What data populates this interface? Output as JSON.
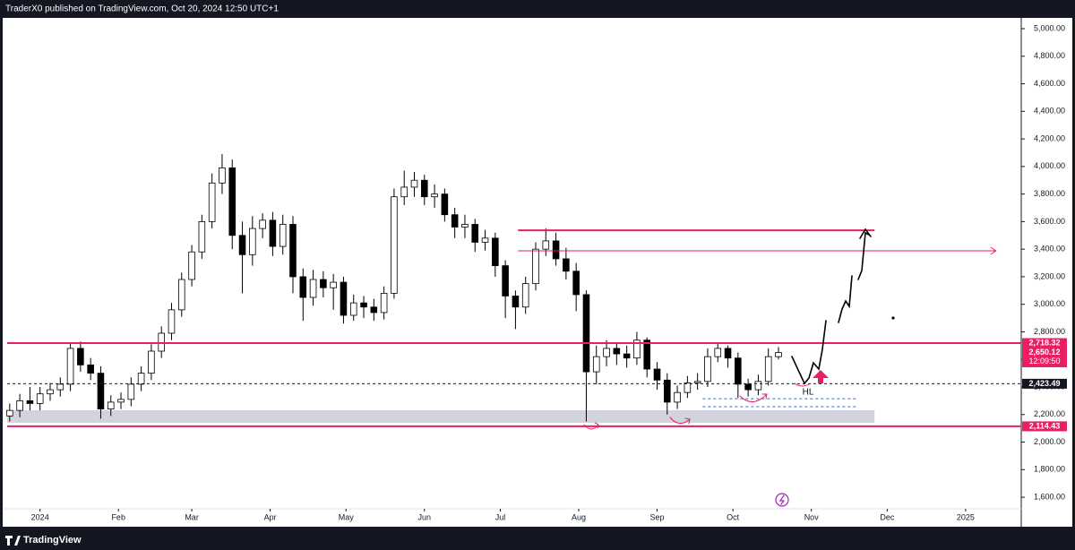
{
  "header": {
    "text": "TraderX0 published on TradingView.com, Oct 20, 2024 12:50 UTC+1"
  },
  "footer": {
    "brand": "TradingView"
  },
  "chart_data": {
    "type": "candlestick",
    "x": [
      -12,
      -8,
      -4,
      0,
      4,
      8,
      12,
      16,
      20,
      24,
      28,
      32,
      36,
      40,
      44,
      48,
      52,
      56,
      60,
      64,
      68,
      72,
      76,
      80,
      84,
      88,
      92,
      96,
      100,
      104,
      108,
      112,
      116,
      120,
      124,
      128,
      132,
      136,
      140,
      144,
      148,
      152,
      156,
      160,
      164,
      168,
      172,
      176,
      180,
      184,
      188,
      192,
      196,
      200,
      204,
      208,
      212,
      216,
      220,
      224,
      228,
      232,
      236,
      240,
      244,
      248,
      252,
      256,
      260,
      264,
      268,
      272,
      276,
      280,
      284,
      288,
      292
    ],
    "open": [
      2190,
      2230,
      2300,
      2280,
      2350,
      2380,
      2420,
      2680,
      2560,
      2500,
      2240,
      2290,
      2310,
      2420,
      2500,
      2660,
      2790,
      2960,
      3180,
      3380,
      3600,
      3880,
      3990,
      3500,
      3360,
      3550,
      3610,
      3420,
      3580,
      3200,
      3050,
      3180,
      3120,
      3160,
      2920,
      3010,
      2980,
      2940,
      3080,
      3780,
      3850,
      3900,
      3780,
      3800,
      3650,
      3560,
      3580,
      3450,
      3480,
      3280,
      3060,
      2980,
      3150,
      3400,
      3460,
      3330,
      3240,
      3070,
      2510,
      2620,
      2680,
      2640,
      2610,
      2740,
      2530,
      2450,
      2290,
      2360,
      2430,
      2440,
      2620,
      2680,
      2610,
      2420,
      2380,
      2440,
      2620
    ],
    "high": [
      2280,
      2350,
      2400,
      2400,
      2430,
      2470,
      2720,
      2730,
      2610,
      2550,
      2340,
      2360,
      2470,
      2550,
      2710,
      2840,
      3010,
      3230,
      3430,
      3650,
      3950,
      4090,
      4050,
      3600,
      3640,
      3660,
      3670,
      3650,
      3640,
      3260,
      3250,
      3240,
      3220,
      3200,
      3070,
      3060,
      3040,
      3130,
      3840,
      3970,
      3960,
      3940,
      3870,
      3840,
      3700,
      3650,
      3620,
      3540,
      3520,
      3320,
      3100,
      3200,
      3450,
      3550,
      3520,
      3410,
      3300,
      3100,
      2700,
      2740,
      2720,
      2700,
      2800,
      2760,
      2580,
      2500,
      2410,
      2480,
      2500,
      2680,
      2720,
      2700,
      2650,
      2460,
      2490,
      2680,
      2690
    ],
    "low": [
      2150,
      2180,
      2230,
      2230,
      2300,
      2330,
      2370,
      2510,
      2450,
      2170,
      2190,
      2240,
      2260,
      2370,
      2450,
      2610,
      2740,
      2910,
      3130,
      3330,
      3550,
      3800,
      3400,
      3080,
      3280,
      3480,
      3350,
      3360,
      3080,
      2880,
      2990,
      3050,
      2960,
      2860,
      2880,
      2900,
      2880,
      2890,
      3040,
      3720,
      3780,
      3720,
      3700,
      3600,
      3480,
      3480,
      3380,
      3390,
      3200,
      2900,
      2820,
      2930,
      3100,
      3350,
      3280,
      3180,
      2950,
      2150,
      2420,
      2550,
      2560,
      2540,
      2560,
      2470,
      2380,
      2200,
      2240,
      2320,
      2380,
      2400,
      2580,
      2540,
      2320,
      2330,
      2340,
      2410,
      2600
    ],
    "close": [
      2230,
      2300,
      2280,
      2350,
      2380,
      2420,
      2680,
      2560,
      2500,
      2240,
      2290,
      2310,
      2420,
      2500,
      2660,
      2790,
      2960,
      3180,
      3380,
      3600,
      3880,
      3990,
      3500,
      3360,
      3550,
      3610,
      3420,
      3580,
      3200,
      3050,
      3180,
      3120,
      3160,
      2920,
      3010,
      2980,
      2940,
      3080,
      3780,
      3850,
      3900,
      3780,
      3800,
      3650,
      3560,
      3580,
      3450,
      3480,
      3280,
      3060,
      2980,
      3150,
      3400,
      3460,
      3330,
      3240,
      3070,
      2510,
      2620,
      2680,
      2640,
      2610,
      2740,
      2530,
      2450,
      2290,
      2360,
      2430,
      2440,
      2620,
      2680,
      2610,
      2420,
      2380,
      2440,
      2620,
      2650
    ],
    "up_color": "#ffffff",
    "down_color": "#000000",
    "wick_color": "#000000",
    "xlim": [
      -13,
      388
    ],
    "xticks": [
      {
        "value": 0,
        "label": "2024"
      },
      {
        "value": 31,
        "label": "Feb"
      },
      {
        "value": 60,
        "label": "Mar"
      },
      {
        "value": 91,
        "label": "Apr"
      },
      {
        "value": 121,
        "label": "May"
      },
      {
        "value": 152,
        "label": "Jun"
      },
      {
        "value": 182,
        "label": "Jul"
      },
      {
        "value": 213,
        "label": "Aug"
      },
      {
        "value": 244,
        "label": "Sep"
      },
      {
        "value": 274,
        "label": "Oct"
      },
      {
        "value": 305,
        "label": "Nov"
      },
      {
        "value": 335,
        "label": "Dec"
      },
      {
        "value": 366,
        "label": "2025"
      }
    ],
    "ylim": [
      1516,
      5078
    ],
    "yticks": [
      {
        "value": 1600,
        "label": "1,600.00"
      },
      {
        "value": 1800,
        "label": "1,800.00"
      },
      {
        "value": 2000,
        "label": "2,000.00"
      },
      {
        "value": 2200,
        "label": "2,200.00"
      },
      {
        "value": 2400,
        "label": "2,400.00"
      },
      {
        "value": 2600,
        "label": "2,600.00"
      },
      {
        "value": 2800,
        "label": "2,800.00"
      },
      {
        "value": 3000,
        "label": "3,000.00"
      },
      {
        "value": 3200,
        "label": "3,200.00"
      },
      {
        "value": 3400,
        "label": "3,400.00"
      },
      {
        "value": 3600,
        "label": "3,600.00"
      },
      {
        "value": 3800,
        "label": "3,800.00"
      },
      {
        "value": 4000,
        "label": "4,000.00"
      },
      {
        "value": 4200,
        "label": "4,200.00"
      },
      {
        "value": 4400,
        "label": "4,400.00"
      },
      {
        "value": 4600,
        "label": "4,600.00"
      },
      {
        "value": 4800,
        "label": "4,800.00"
      },
      {
        "value": 5000,
        "label": "5,000.00"
      }
    ],
    "zones": [
      {
        "values": [
          2140,
          2231
        ],
        "from": -13,
        "to": 330,
        "color": "#d1d4dc"
      }
    ],
    "levels": [
      {
        "value": 3537,
        "from": 189,
        "to": 330,
        "color": "#e91e63",
        "width": 2
      },
      {
        "value": 3388,
        "from": 189,
        "to": 378,
        "color": "#e91e63",
        "width": 1,
        "arrow": true
      },
      {
        "value": 2718.32,
        "color": "#e91e63",
        "width": 2
      },
      {
        "value": 2114.43,
        "color": "#e91e63",
        "width": 2
      },
      {
        "value": 2423.49,
        "color": "#131722",
        "width": 1,
        "dashed": true
      },
      {
        "value": 2315,
        "from": 262,
        "to": 323,
        "color": "#2962ff",
        "width": 1,
        "dashed": true
      },
      {
        "value": 2257,
        "from": 262,
        "to": 323,
        "color": "#2962ff",
        "width": 1,
        "dashed": true
      }
    ],
    "price_labels": [
      {
        "value": 2718.32,
        "label": "2,718.32",
        "color": "#e91e63"
      },
      {
        "value": 2650.12,
        "label": "2,650.12",
        "color": "#e91e63",
        "countdown": "12:09:50"
      },
      {
        "value": 2423.49,
        "label": "2,423.49",
        "color": "#131722"
      },
      {
        "value": 2114.43,
        "label": "2,114.43",
        "color": "#e91e63"
      }
    ],
    "annotation": "HL"
  }
}
